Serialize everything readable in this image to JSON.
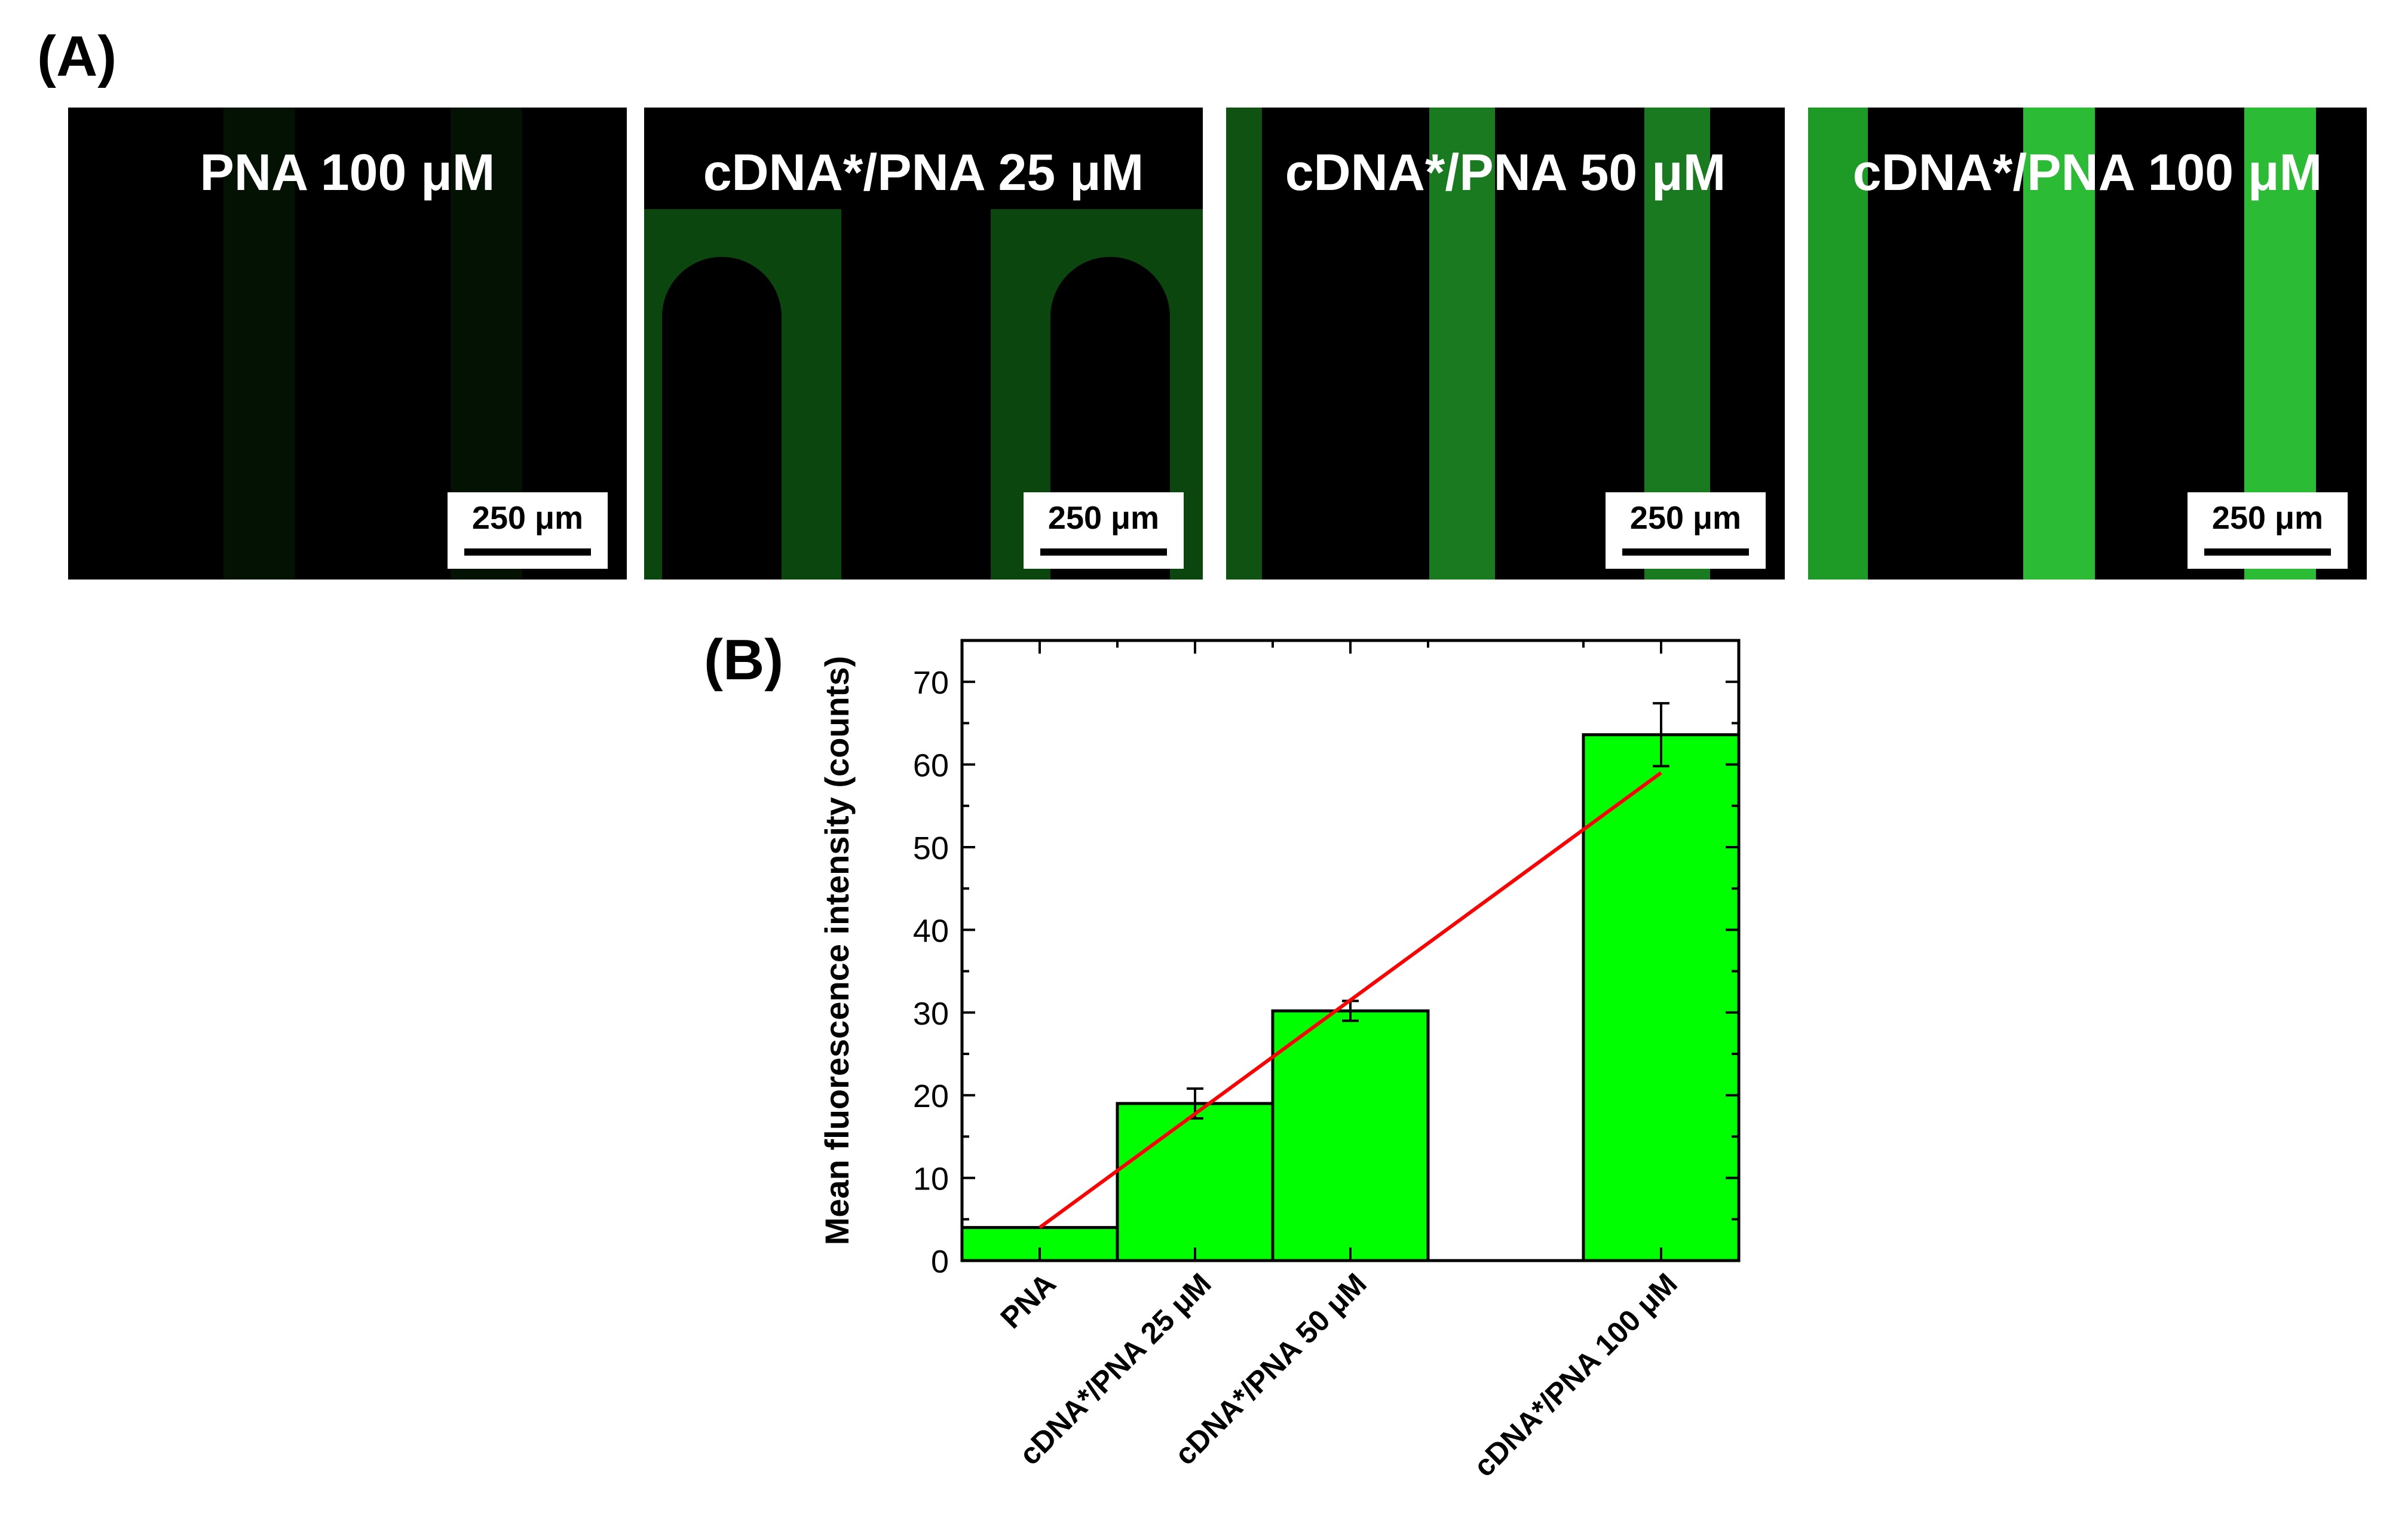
{
  "panel_a_label": "(A)",
  "panel_b_label": "(B)",
  "micrographs": [
    {
      "title": "PNA 100 μM",
      "scale": "250 μm",
      "brightness": "dark"
    },
    {
      "title": "cDNA*/PNA 25 μM",
      "scale": "250 μm",
      "brightness": "dim"
    },
    {
      "title": "cDNA*/PNA 50 μM",
      "scale": "250 μm",
      "brightness": "medium"
    },
    {
      "title": "cDNA*/PNA 100 μM",
      "scale": "250 μm",
      "brightness": "bright"
    }
  ],
  "colors": {
    "bar": "#00ff00",
    "fit_line": "#ff0000",
    "micro_green": "#2fd63a"
  },
  "chart_data": {
    "type": "bar",
    "categories": [
      "PNA",
      "cDNA*/PNA 25 μM",
      "cDNA*/PNA 50 μM",
      "cDNA*/PNA 100 μM"
    ],
    "x": [
      0,
      25,
      50,
      100
    ],
    "values": [
      4,
      19,
      30.2,
      63.6
    ],
    "errors": [
      0,
      1.8,
      1.2,
      3.8
    ],
    "ylabel": "Mean fluorescence intensity (counts)",
    "xlabel": "",
    "ylim": [
      0,
      75
    ],
    "yticks": [
      0,
      10,
      20,
      30,
      40,
      50,
      60,
      70
    ],
    "fit_line": {
      "x": [
        0,
        100
      ],
      "y": [
        4,
        59
      ]
    },
    "grid": false
  }
}
